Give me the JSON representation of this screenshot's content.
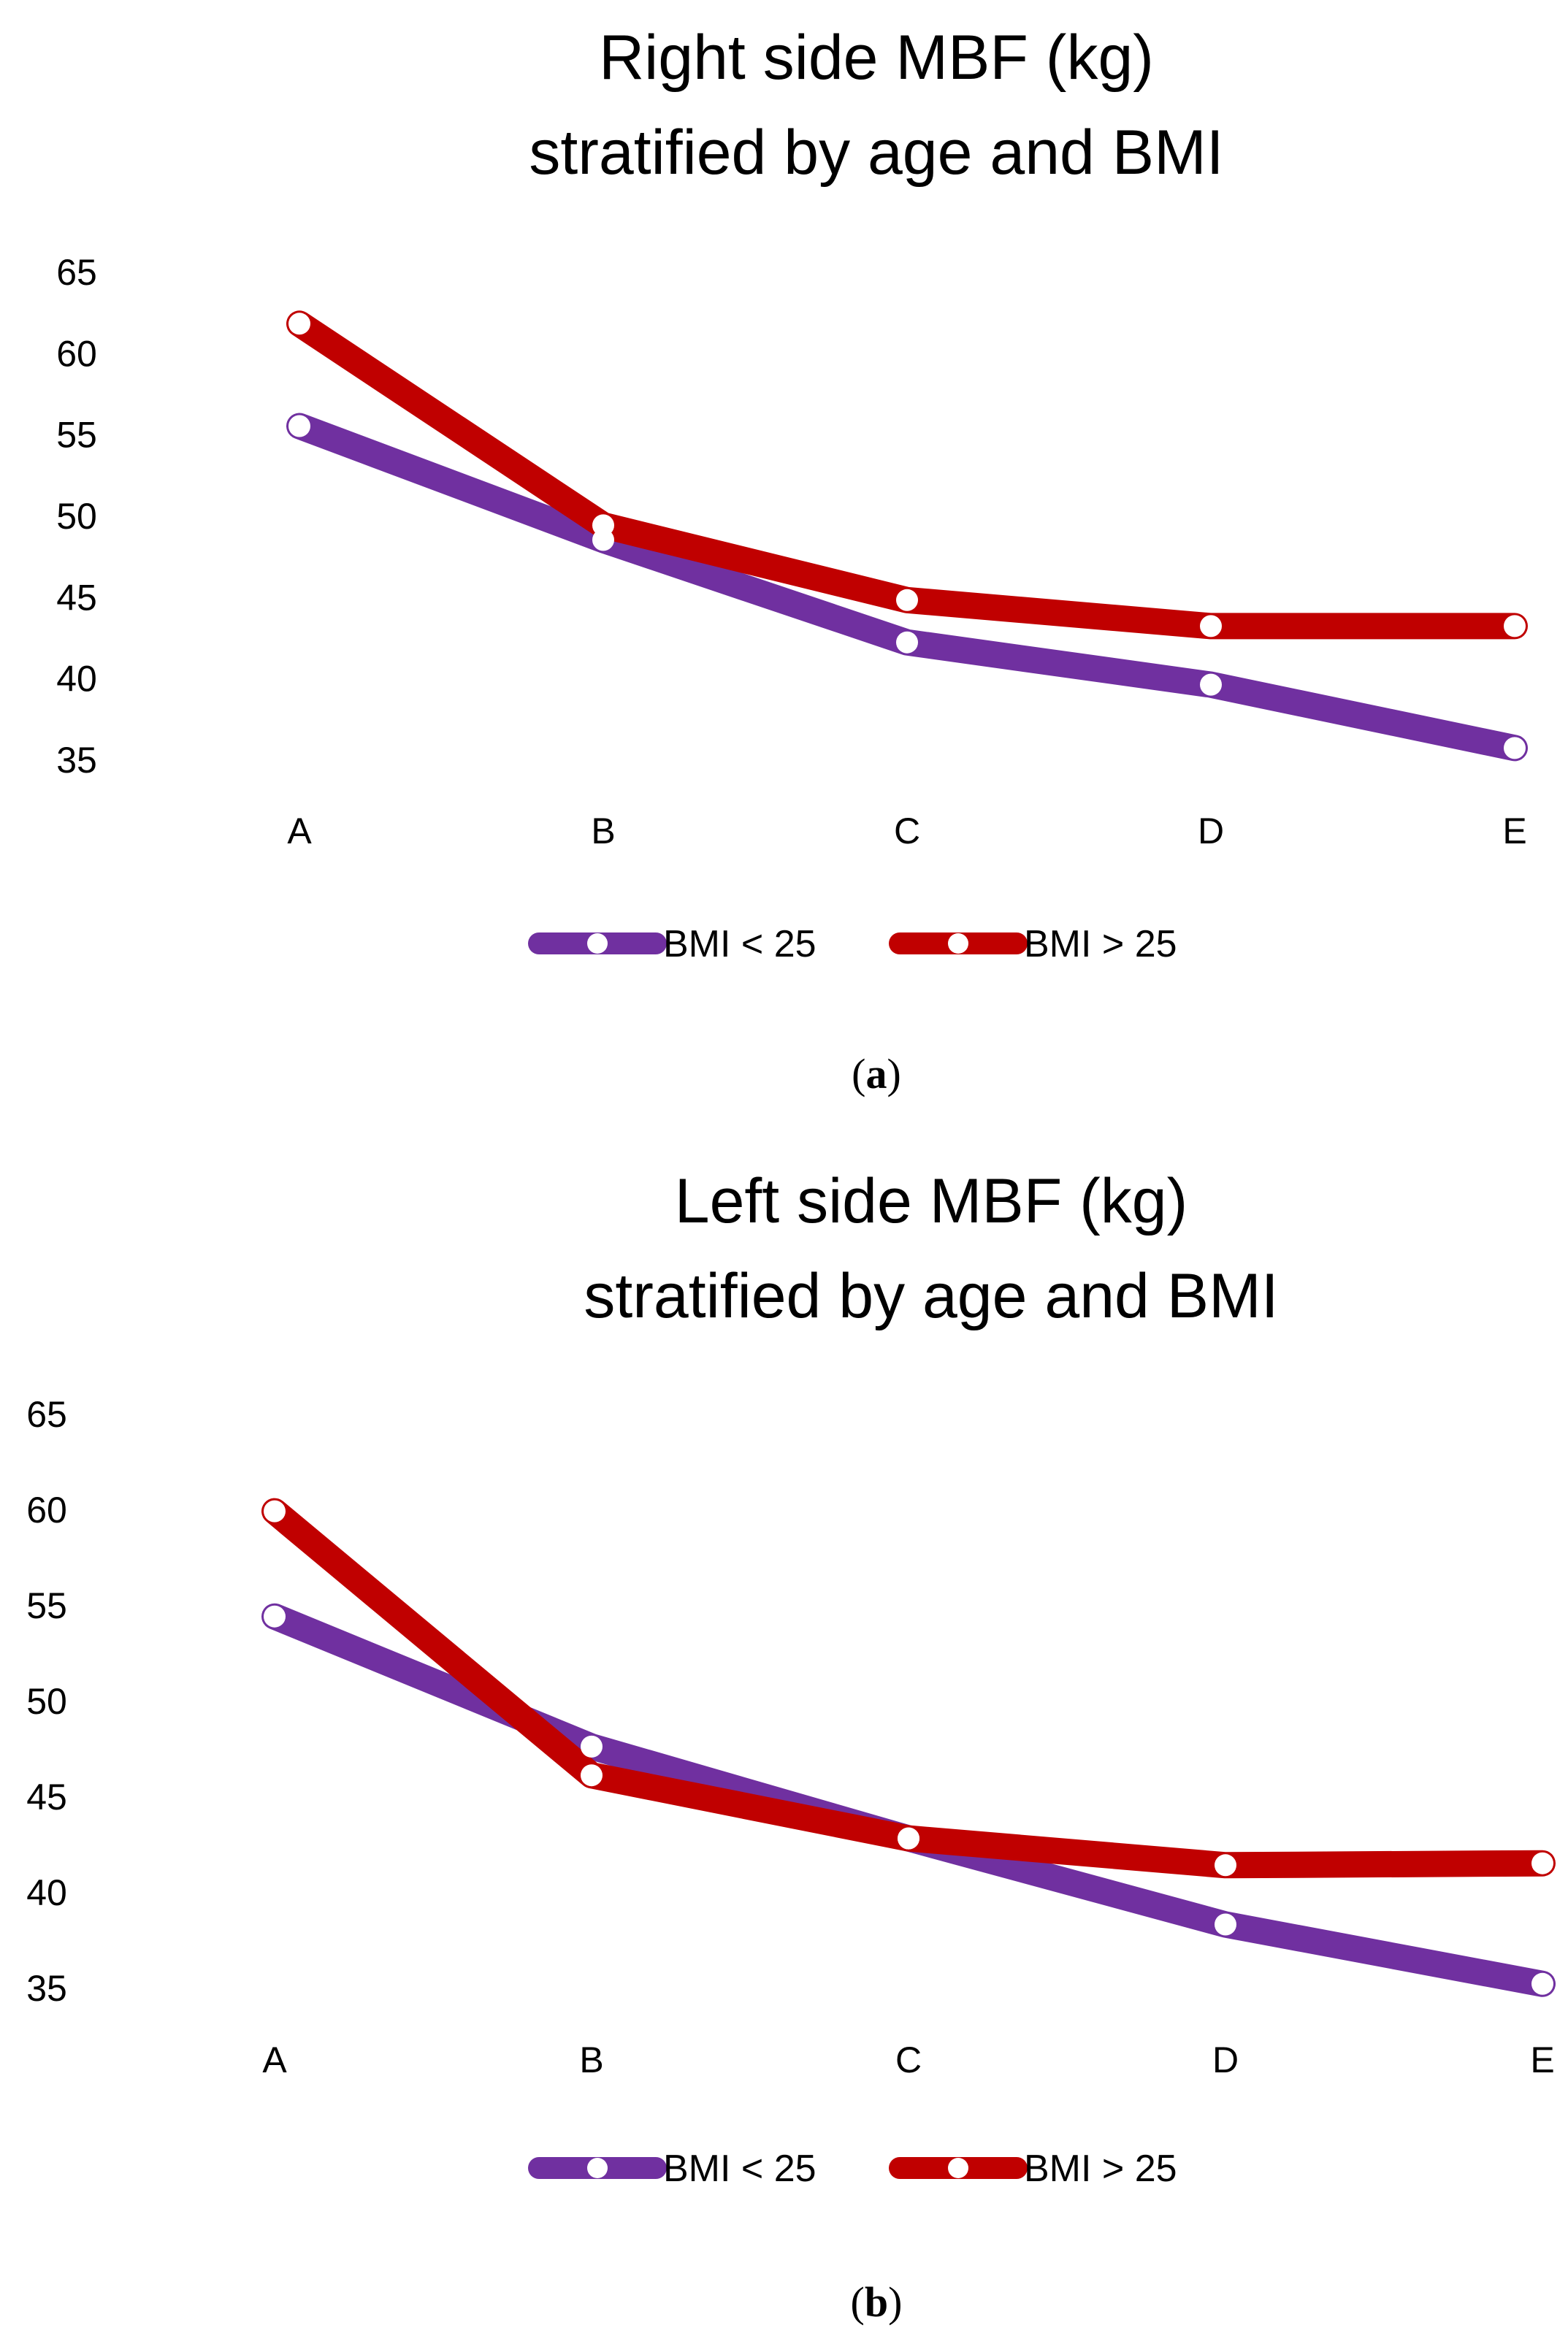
{
  "chart_data": [
    {
      "type": "line",
      "title_line1": "Right side MBF (kg)",
      "title_line2": "stratified by age and BMI",
      "xlabel": "",
      "ylabel": "",
      "categories": [
        "A",
        "B",
        "C",
        "D",
        "E"
      ],
      "yticks": [
        "65",
        "60",
        "55",
        "50",
        "45",
        "40",
        "35"
      ],
      "ylim": [
        35,
        65
      ],
      "series": [
        {
          "name": "BMI < 25",
          "color": "#7030A0",
          "values": [
            55.5,
            48.5,
            42.2,
            39.6,
            35.7
          ]
        },
        {
          "name": "BMI > 25",
          "color": "#C00000",
          "values": [
            61.8,
            49.4,
            44.8,
            43.2,
            43.2
          ]
        }
      ],
      "legend_position": "bottom-center",
      "panel_label": {
        "open": "(",
        "letter": "a",
        "close": ")"
      }
    },
    {
      "type": "line",
      "title_line1": "Left side MBF (kg)",
      "title_line2": "stratified by age and BMI",
      "xlabel": "",
      "ylabel": "",
      "categories": [
        "A",
        "B",
        "C",
        "D",
        "E"
      ],
      "yticks": [
        "65",
        "60",
        "55",
        "50",
        "45",
        "40",
        "35"
      ],
      "ylim": [
        35,
        65
      ],
      "series": [
        {
          "name": "BMI < 25",
          "color": "#7030A0",
          "values": [
            54.4,
            47.6,
            42.8,
            38.3,
            35.2
          ]
        },
        {
          "name": "BMI > 25",
          "color": "#C00000",
          "values": [
            59.9,
            46.1,
            42.8,
            41.4,
            41.5
          ]
        }
      ],
      "legend_position": "bottom-center",
      "panel_label": {
        "open": "(",
        "letter": "b",
        "close": ")"
      }
    }
  ]
}
